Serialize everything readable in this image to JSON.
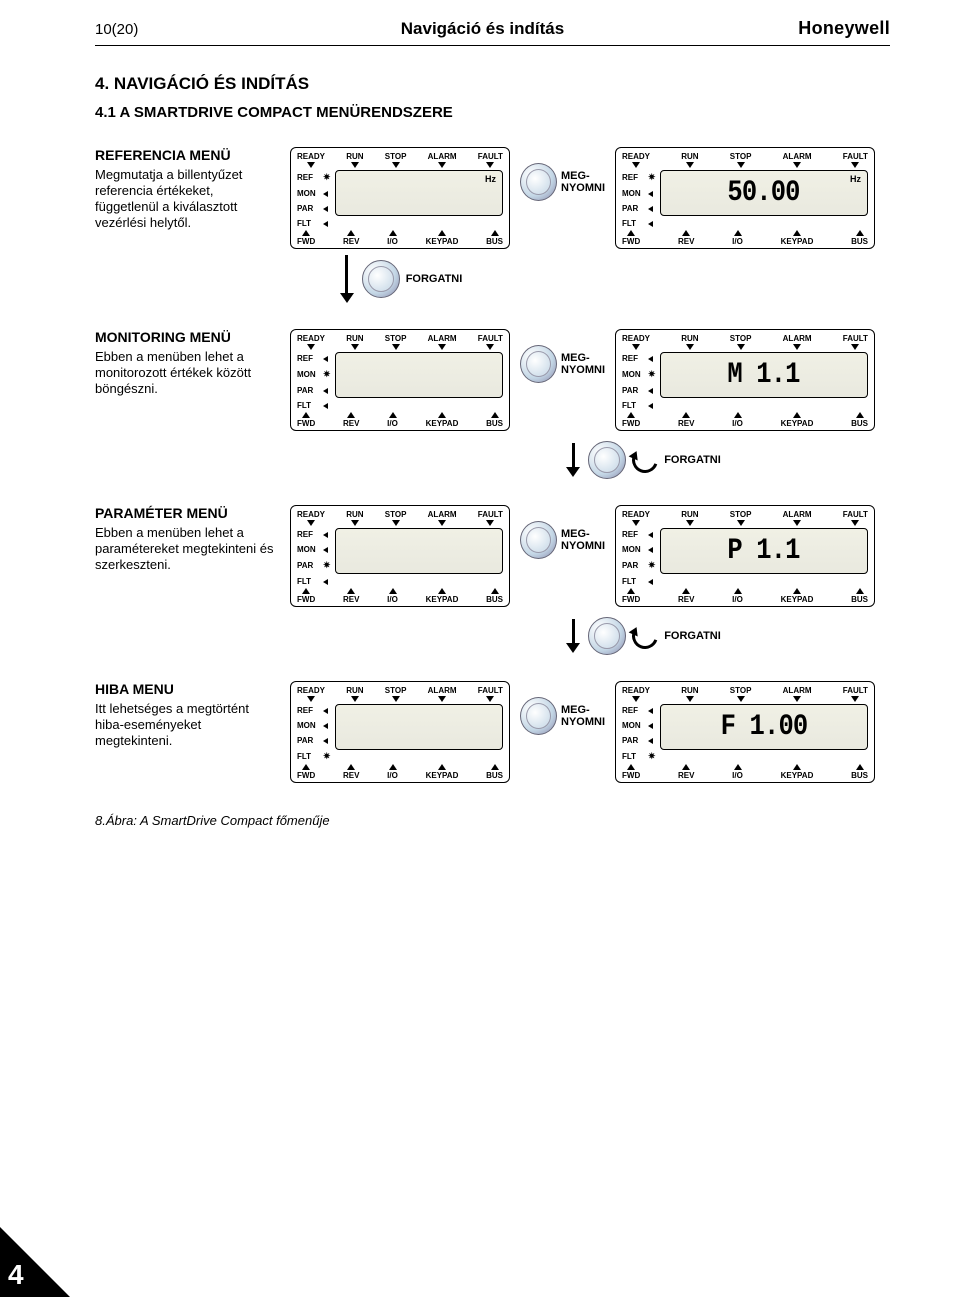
{
  "header": {
    "left": "10(20)",
    "center": "Navigáció és indítás",
    "right": "Honeywell"
  },
  "h1": "4.  NAVIGÁCIÓ ÉS INDÍTÁS",
  "h2": "4.1  A SMARTDRIVE COMPACT MENÜRENDSZERE",
  "actions": {
    "press": "MEG-NYOMNI",
    "turn": "FORGATNI"
  },
  "panel_labels": {
    "top": [
      "READY",
      "RUN",
      "STOP",
      "ALARM",
      "FAULT"
    ],
    "side": [
      "REF",
      "MON",
      "PAR",
      "FLT"
    ],
    "bottom": [
      "FWD",
      "REV",
      "I/O",
      "KEYPAD",
      "BUS"
    ]
  },
  "rows": [
    {
      "title": "REFERENCIA MENÜ",
      "desc": "Megmutatja a billentyűzet referencia értékeket, függetlenül a kiválasztott vezérlési helytől.",
      "left_blink_index": 0,
      "left_hz": "Hz",
      "right_blink_index": 0,
      "right_text": "50.00",
      "right_hz": "Hz",
      "show_down_arrow": true,
      "turn_between_after": false
    },
    {
      "title": "MONITORING MENÜ",
      "desc": "Ebben a menüben lehet a monitorozott értékek között böngészni.",
      "left_blink_index": 1,
      "right_blink_index": 1,
      "right_text": "M 1.1",
      "show_down_arrow": false,
      "turn_between_after": true
    },
    {
      "title": "PARAMÉTER MENÜ",
      "desc": "Ebben a menüben lehet a paramétereket megtekinteni és szerkeszteni.",
      "left_blink_index": 2,
      "right_blink_index": 2,
      "right_text": "P 1.1",
      "show_down_arrow": false,
      "turn_between_after": true
    },
    {
      "title": "HIBA MENU",
      "desc": "Itt lehetséges a megtörtént hiba-eseményeket megtekinteni.",
      "left_blink_index": 3,
      "right_blink_index": 3,
      "right_text": "F 1.00",
      "show_down_arrow": false,
      "turn_between_after": false
    }
  ],
  "caption": "8.Ábra:  A SmartDrive Compact főmenűje",
  "chapter": "4"
}
